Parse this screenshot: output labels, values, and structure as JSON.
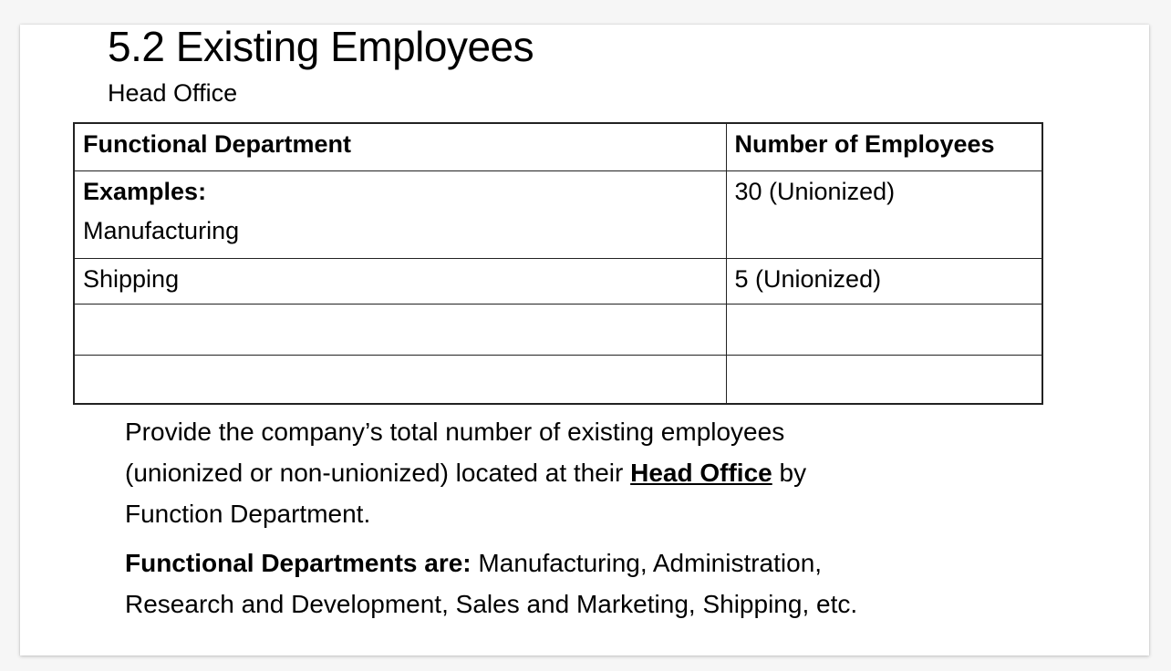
{
  "page": {
    "title": "5.2 Existing Employees",
    "subtitle": "Head Office"
  },
  "table": {
    "columns": [
      "Functional Department",
      "Number of Employees"
    ],
    "rows": [
      {
        "department": [
          {
            "text": "Examples:",
            "bold": true
          },
          {
            "text": "Manufacturing",
            "bold": false
          }
        ],
        "employees": [
          {
            "text": "30 (Unionized)",
            "bold": false
          }
        ]
      },
      {
        "department": [
          {
            "text": "Shipping",
            "bold": false
          }
        ],
        "employees": [
          {
            "text": "5 (Unionized)",
            "bold": false
          }
        ]
      },
      {
        "department": [],
        "employees": []
      },
      {
        "department": [],
        "employees": []
      }
    ]
  },
  "paragraphs": [
    {
      "lines": [
        [
          {
            "text": "Provide the company’s total number of existing employees"
          }
        ],
        [
          {
            "text": "(unionized or non-unionized) located at their "
          },
          {
            "text": "Head Office",
            "bold": true,
            "underline": true
          },
          {
            "text": " by"
          }
        ],
        [
          {
            "text": "Function Department."
          }
        ]
      ]
    },
    {
      "lines": [
        [
          {
            "text": "Functional Departments are:",
            "bold": true
          },
          {
            "text": " Manufacturing, Administration,"
          }
        ],
        [
          {
            "text": "Research and Development, Sales and Marketing, Shipping, etc."
          }
        ]
      ]
    }
  ],
  "colors": {
    "canvas_background": "#f6f6f6",
    "page_background": "#ffffff",
    "table_border": "#222222",
    "text": "#000000"
  }
}
